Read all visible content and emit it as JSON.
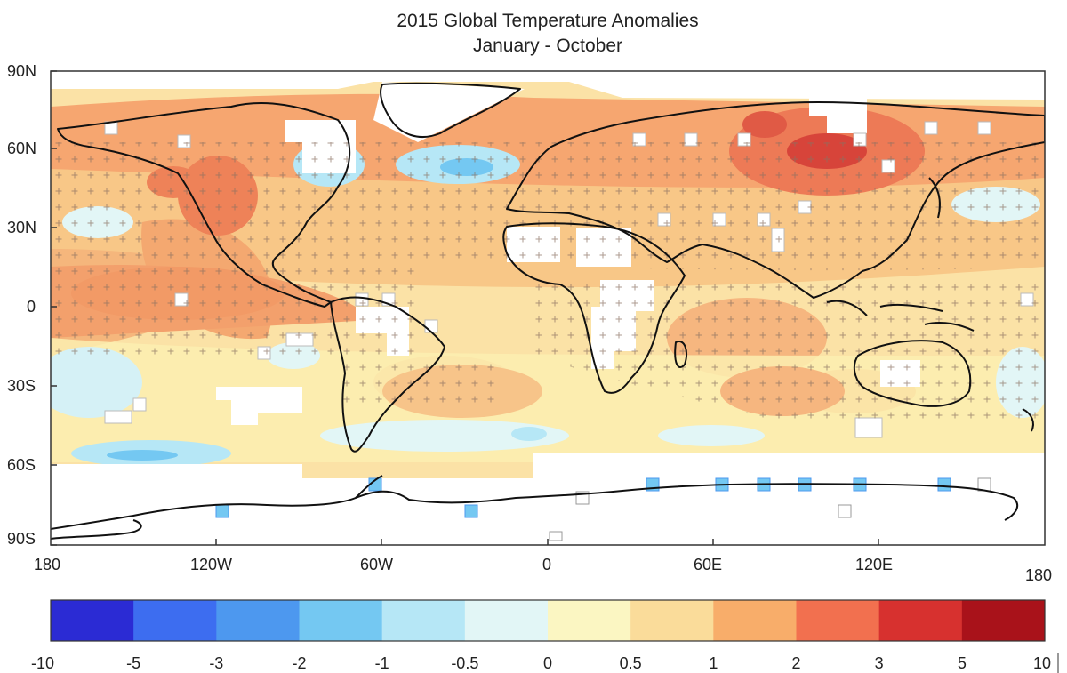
{
  "title": "2015 Global Temperature Anomalies",
  "subtitle": "January - October",
  "map": {
    "lat_labels": [
      "90N",
      "60N",
      "30N",
      "0",
      "30S",
      "60S",
      "90S"
    ],
    "lon_labels": [
      "180",
      "120W",
      "60W",
      "0",
      "60E",
      "120E",
      "180"
    ],
    "no_data_color": "#ffffff",
    "stipple_marker": "+"
  },
  "colorbar": {
    "bins": [
      {
        "color": "#2b2bd4"
      },
      {
        "color": "#3d6df0"
      },
      {
        "color": "#4d98ef"
      },
      {
        "color": "#74c8f2"
      },
      {
        "color": "#b6e7f6"
      },
      {
        "color": "#e2f6f6"
      },
      {
        "color": "#fbf6c2"
      },
      {
        "color": "#fadc9a"
      },
      {
        "color": "#f8ad6a"
      },
      {
        "color": "#f2704f"
      },
      {
        "color": "#d7312f"
      },
      {
        "color": "#a9121a"
      }
    ],
    "tick_labels": [
      "-10",
      "-5",
      "-3",
      "-2",
      "-1",
      "-0.5",
      "0",
      "0.5",
      "1",
      "2",
      "3",
      "5",
      "10"
    ]
  }
}
